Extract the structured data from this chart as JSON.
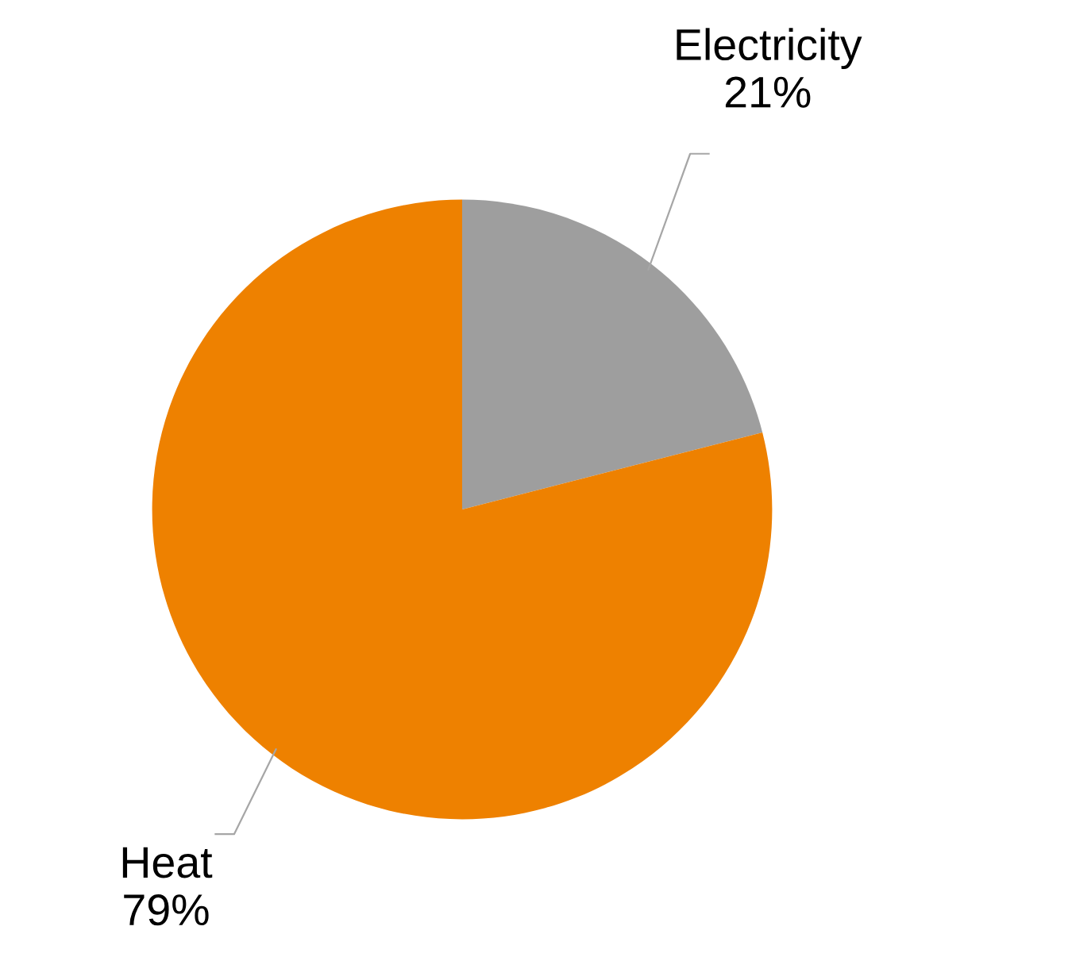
{
  "chart_data": {
    "type": "pie",
    "categories": [
      "Electricity",
      "Heat"
    ],
    "values": [
      21,
      79
    ],
    "colors": [
      "#9e9e9e",
      "#ee8100"
    ],
    "value_labels": [
      "21%",
      "79%"
    ]
  }
}
